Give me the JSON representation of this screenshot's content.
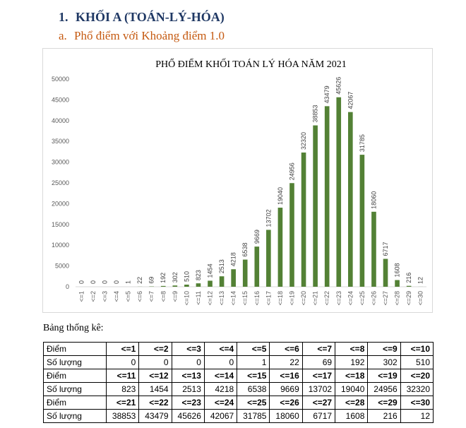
{
  "headings": {
    "h1_number": "1.",
    "h1_text": "KHỐI A (TOÁN-LÝ-HÓA)",
    "h2_number": "a.",
    "h2_text": "Phổ điểm với Khoảng điểm 1.0"
  },
  "colors": {
    "bar": "#538135",
    "heading1": "#1f3864",
    "heading2": "#c55a11"
  },
  "chart_data": {
    "type": "bar",
    "title": "PHỔ ĐIỂM KHỐI TOÁN LÝ HÓA NĂM 2021",
    "categories": [
      "<=1",
      "<=2",
      "<=3",
      "<=4",
      "<=5",
      "<=6",
      "<=7",
      "<=8",
      "<=9",
      "<=10",
      "<=11",
      "<=12",
      "<=13",
      "<=14",
      "<=15",
      "<=16",
      "<=17",
      "<=18",
      "<=19",
      "<=20",
      "<=21",
      "<=22",
      "<=23",
      "<=24",
      "<=25",
      "<=26",
      "<=27",
      "<=28",
      "<=29",
      "<=30"
    ],
    "values": [
      0,
      0,
      0,
      0,
      1,
      22,
      69,
      192,
      302,
      510,
      823,
      1454,
      2513,
      4218,
      6538,
      9669,
      13702,
      19040,
      24956,
      32320,
      38853,
      43479,
      45626,
      42067,
      31785,
      18060,
      6717,
      1608,
      216,
      12
    ],
    "yticks": [
      "0",
      "5000",
      "10000",
      "15000",
      "20000",
      "25000",
      "30000",
      "35000",
      "40000",
      "45000",
      "50000"
    ],
    "ylim": [
      0,
      50000
    ],
    "grid": false
  },
  "stats": {
    "label": "Bảng thống kê:",
    "row_label_diem": "Điểm",
    "row_label_soluong": "Số lượng",
    "groups": [
      {
        "diem": [
          "<=1",
          "<=2",
          "<=3",
          "<=4",
          "<=5",
          "<=6",
          "<=7",
          "<=8",
          "<=9",
          "<=10"
        ],
        "soluong": [
          "0",
          "0",
          "0",
          "0",
          "1",
          "22",
          "69",
          "192",
          "302",
          "510"
        ]
      },
      {
        "diem": [
          "<=11",
          "<=12",
          "<=13",
          "<=14",
          "<=15",
          "<=16",
          "<=17",
          "<=18",
          "<=19",
          "<=20"
        ],
        "soluong": [
          "823",
          "1454",
          "2513",
          "4218",
          "6538",
          "9669",
          "13702",
          "19040",
          "24956",
          "32320"
        ]
      },
      {
        "diem": [
          "<=21",
          "<=22",
          "<=23",
          "<=24",
          "<=25",
          "<=26",
          "<=27",
          "<=28",
          "<=29",
          "<=30"
        ],
        "soluong": [
          "38853",
          "43479",
          "45626",
          "42067",
          "31785",
          "18060",
          "6717",
          "1608",
          "216",
          "12"
        ]
      }
    ]
  }
}
